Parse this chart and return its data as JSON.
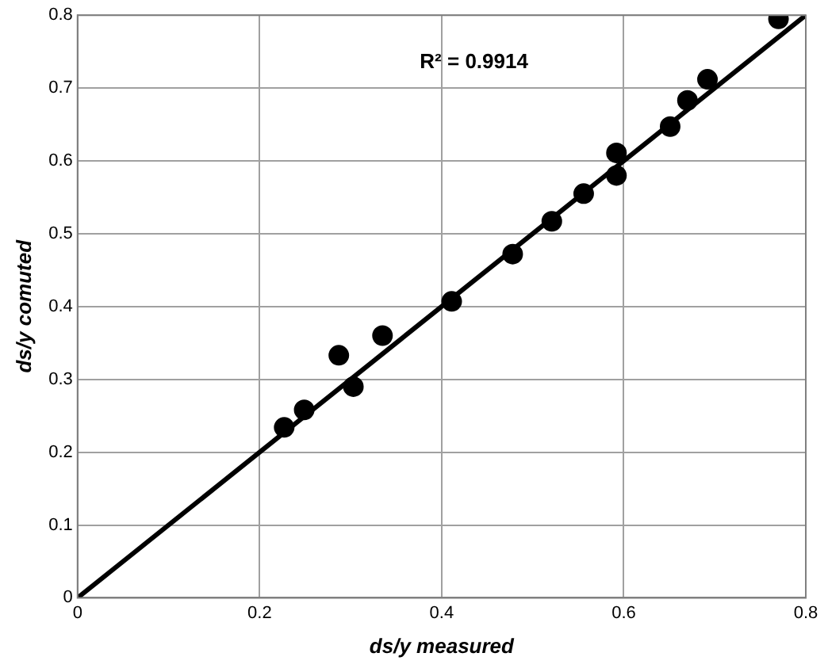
{
  "chart_data": {
    "type": "scatter",
    "xlabel": "ds/y measured",
    "ylabel": "ds/y comuted",
    "annotations": [
      "R² = 0.9914"
    ],
    "xlim": [
      0,
      0.8
    ],
    "ylim": [
      0,
      0.8
    ],
    "xticks": [
      0,
      0.2,
      0.4,
      0.6,
      0.8
    ],
    "yticks": [
      0,
      0.1,
      0.2,
      0.3,
      0.4,
      0.5,
      0.6,
      0.7,
      0.8
    ],
    "grid": true,
    "legend": false,
    "marker": "circle",
    "series": [
      {
        "color": "#000000",
        "x": [
          0.227,
          0.249,
          0.287,
          0.303,
          0.335,
          0.411,
          0.478,
          0.521,
          0.556,
          0.592,
          0.592,
          0.651,
          0.67,
          0.692,
          0.77
        ],
        "values": [
          0.234,
          0.258,
          0.333,
          0.29,
          0.36,
          0.407,
          0.472,
          0.517,
          0.555,
          0.611,
          0.58,
          0.647,
          0.683,
          0.712,
          0.795
        ]
      },
      {
        "type": "line",
        "color": "#000000",
        "marker": "none",
        "x": [
          0,
          0.8
        ],
        "values": [
          0,
          0.8
        ]
      }
    ]
  }
}
